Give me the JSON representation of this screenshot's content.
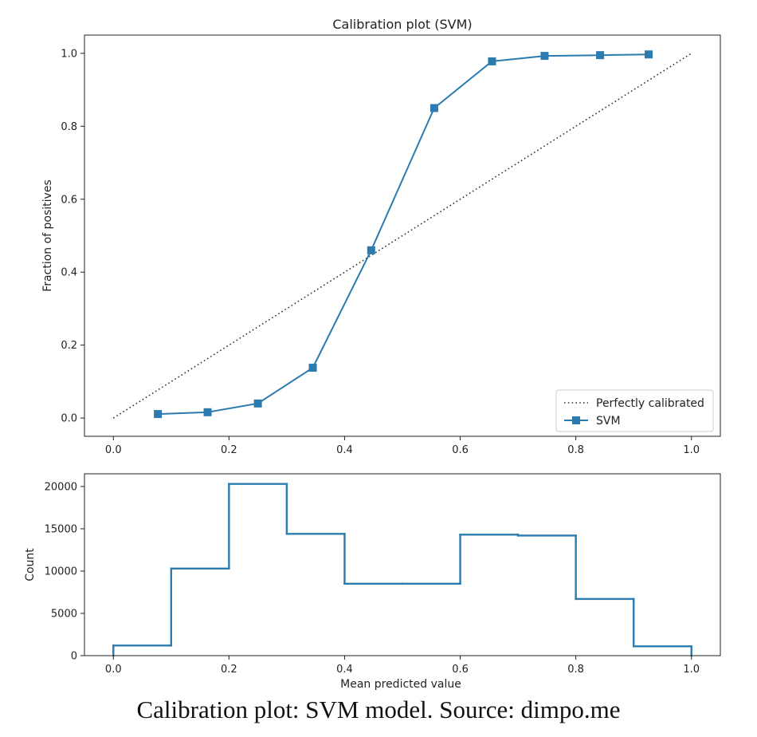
{
  "caption": "Calibration plot: SVM model. Source: dimpo.me",
  "colors": {
    "series": "#2b7bb0",
    "reference": "#333333",
    "axes": "#222222"
  },
  "chart_data": [
    {
      "type": "line",
      "title": "Calibration plot (SVM)",
      "xlabel": "",
      "ylabel": "Fraction of positives",
      "xlim": [
        -0.05,
        1.05
      ],
      "ylim": [
        -0.05,
        1.05
      ],
      "xticks": [
        0.0,
        0.2,
        0.4,
        0.6,
        0.8,
        1.0
      ],
      "xtick_labels": [
        "0.0",
        "0.2",
        "0.4",
        "0.6",
        "0.8",
        "1.0"
      ],
      "yticks": [
        0.0,
        0.2,
        0.4,
        0.6,
        0.8,
        1.0
      ],
      "ytick_labels": [
        "0.0",
        "0.2",
        "0.4",
        "0.6",
        "0.8",
        "1.0"
      ],
      "grid": false,
      "legend": "lower-right",
      "series": [
        {
          "name": "Perfectly calibrated",
          "style": "dotted",
          "marker": "none",
          "x": [
            0.0,
            1.0
          ],
          "y": [
            0.0,
            1.0
          ]
        },
        {
          "name": "SVM",
          "style": "solid",
          "marker": "square",
          "x": [
            0.077,
            0.163,
            0.25,
            0.345,
            0.446,
            0.555,
            0.655,
            0.746,
            0.842,
            0.926
          ],
          "y": [
            0.011,
            0.016,
            0.04,
            0.138,
            0.46,
            0.85,
            0.978,
            0.993,
            0.995,
            0.997
          ]
        }
      ]
    },
    {
      "type": "histogram",
      "title": "",
      "xlabel": "Mean predicted value",
      "ylabel": "Count",
      "xlim": [
        -0.05,
        1.05
      ],
      "ylim": [
        0,
        21500
      ],
      "xticks": [
        0.0,
        0.2,
        0.4,
        0.6,
        0.8,
        1.0
      ],
      "xtick_labels": [
        "0.0",
        "0.2",
        "0.4",
        "0.6",
        "0.8",
        "1.0"
      ],
      "yticks": [
        0,
        5000,
        10000,
        15000,
        20000
      ],
      "ytick_labels": [
        "0",
        "5000",
        "10000",
        "15000",
        "20000"
      ],
      "grid": false,
      "bin_edges": [
        0.0,
        0.1,
        0.2,
        0.3,
        0.4,
        0.5,
        0.6,
        0.7,
        0.8,
        0.9,
        1.0
      ],
      "counts": [
        1200,
        10300,
        20300,
        14400,
        8500,
        8500,
        14300,
        14200,
        6700,
        1100
      ]
    }
  ]
}
